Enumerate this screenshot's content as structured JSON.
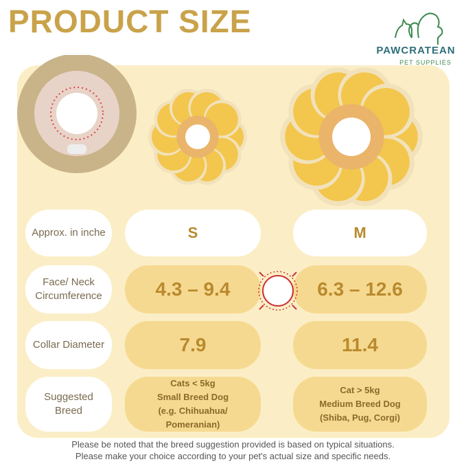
{
  "header": {
    "title": "PRODUCT SIZE"
  },
  "brand": {
    "name": "PAWCRATEAN",
    "tagline": "PET SUPPLIES"
  },
  "table": {
    "header": {
      "label": "Approx. in inche",
      "sizes": [
        "S",
        "M"
      ]
    },
    "rows": [
      {
        "label": "Face/ Neck Circumference",
        "values": [
          "4.3 – 9.4",
          "6.3 – 12.6"
        ]
      },
      {
        "label": "Collar Diameter",
        "values": [
          "7.9",
          "11.4"
        ]
      }
    ],
    "breed": {
      "label": "Suggested Breed",
      "values": [
        [
          "Cats < 5kg",
          "Small Breed Dog",
          "(e.g. Chihuahua/",
          "Pomeranian)"
        ],
        [
          "Cat > 5kg",
          "Medium Breed Dog",
          "(Shiba, Pug, Corgi)"
        ]
      ]
    }
  },
  "footnote": [
    "Please be noted that the breed suggestion provided is based on typical situations.",
    "Please make your choice according to your pet's actual size and specific needs."
  ]
}
